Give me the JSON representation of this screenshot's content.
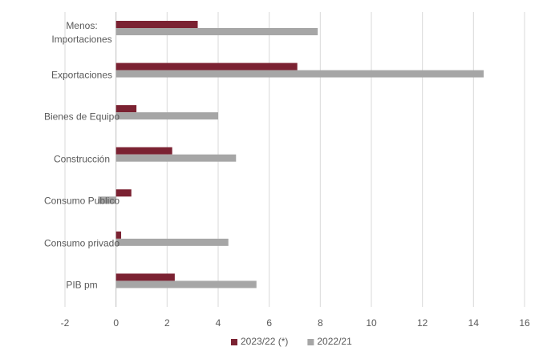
{
  "chart_data": {
    "type": "hbar",
    "categories": [
      "Menos: Importaciones",
      "Exportaciones",
      "Bienes de Equipo",
      "Construcción",
      "Consumo Publico",
      "Consumo privado",
      "PIB pm"
    ],
    "series": [
      {
        "name": "2023/22 (*)",
        "color": "#7b2232",
        "values": [
          3.2,
          7.1,
          0.8,
          2.2,
          0.6,
          0.2,
          2.3
        ]
      },
      {
        "name": "2022/21",
        "color": "#a6a6a6",
        "values": [
          7.9,
          14.4,
          4.0,
          4.7,
          -0.7,
          4.4,
          5.5
        ]
      }
    ],
    "xlim": [
      -2,
      16
    ],
    "xticks": [
      -2,
      0,
      2,
      4,
      6,
      8,
      10,
      12,
      14,
      16
    ],
    "grid": true,
    "legend": "bottom"
  }
}
